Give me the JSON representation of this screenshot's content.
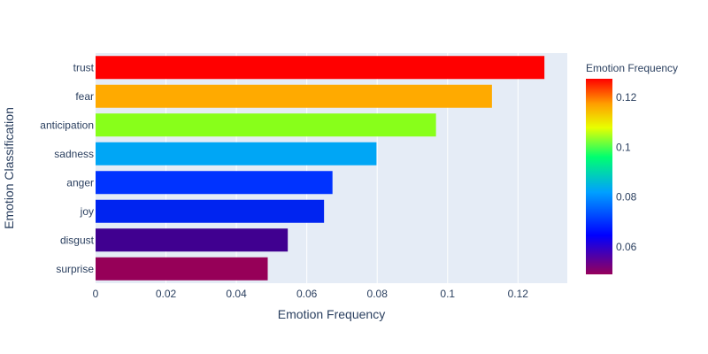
{
  "chart_data": {
    "type": "bar",
    "orientation": "horizontal",
    "title": "",
    "xlabel": "Emotion Frequency",
    "ylabel": "Emotion Classification",
    "xlim": [
      0,
      0.134
    ],
    "x_ticks": [
      0,
      0.02,
      0.04,
      0.06,
      0.08,
      0.1,
      0.12
    ],
    "x_tick_labels": [
      "0",
      "0.02",
      "0.04",
      "0.06",
      "0.08",
      "0.1",
      "0.12"
    ],
    "categories": [
      "trust",
      "fear",
      "anticipation",
      "sadness",
      "anger",
      "joy",
      "disgust",
      "surprise"
    ],
    "values": [
      0.1275,
      0.1126,
      0.0967,
      0.0798,
      0.0673,
      0.0649,
      0.0546,
      0.0489
    ],
    "bar_colors": [
      "#ff0000",
      "#ffaa00",
      "#88ff1a",
      "#00a6f5",
      "#0033ff",
      "#0024f0",
      "#400090",
      "#960058"
    ],
    "grid": true,
    "plot_background": "#e5ecf6",
    "colorbar": {
      "title": "Emotion Frequency",
      "range": [
        0.0489,
        0.1275
      ],
      "tick_values": [
        0.06,
        0.08,
        0.1,
        0.12
      ],
      "tick_labels": [
        "0.06",
        "0.08",
        "0.1",
        "0.12"
      ],
      "stops": [
        {
          "offset": 0.0,
          "color": "#96005a"
        },
        {
          "offset": 0.2,
          "color": "#0000ff"
        },
        {
          "offset": 0.42,
          "color": "#00a0ff"
        },
        {
          "offset": 0.6,
          "color": "#00ff70"
        },
        {
          "offset": 0.75,
          "color": "#e8ff00"
        },
        {
          "offset": 0.87,
          "color": "#ffa000"
        },
        {
          "offset": 1.0,
          "color": "#ff0000"
        }
      ]
    }
  }
}
